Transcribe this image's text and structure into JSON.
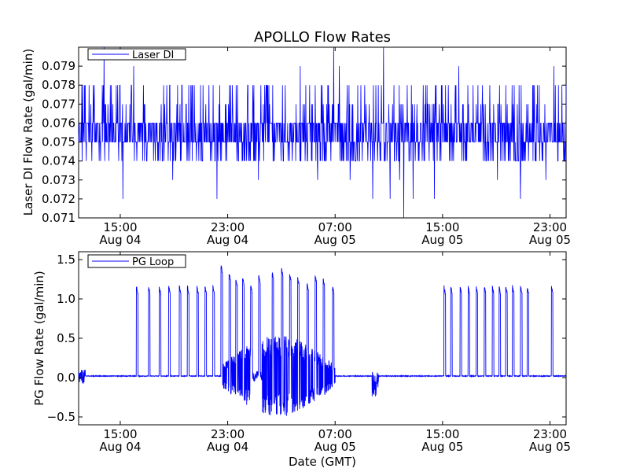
{
  "figure": {
    "title": "APOLLO Flow Rates",
    "line_color": "#0000ff"
  },
  "chart_data": [
    {
      "type": "line",
      "title": "APOLLO Flow Rates",
      "xlabel": "",
      "ylabel": "Laser DI Flow Rate (gal/min)",
      "legend": {
        "label": "Laser DI",
        "position": "top-left"
      },
      "x_hours_range": [
        -3.1,
        33.2
      ],
      "xticks": [
        {
          "h": 0,
          "time": "15:00",
          "date": "Aug 04"
        },
        {
          "h": 8,
          "time": "23:00",
          "date": "Aug 04"
        },
        {
          "h": 16,
          "time": "07:00",
          "date": "Aug 05"
        },
        {
          "h": 24,
          "time": "15:00",
          "date": "Aug 05"
        },
        {
          "h": 32,
          "time": "23:00",
          "date": "Aug 05"
        }
      ],
      "ylim": [
        0.071,
        0.08
      ],
      "yticks": [
        "0.071",
        "0.072",
        "0.073",
        "0.074",
        "0.075",
        "0.076",
        "0.077",
        "0.078",
        "0.079"
      ],
      "resolution": 0.001,
      "baseline_band": [
        0.075,
        0.076
      ],
      "fluctuation_range": [
        0.074,
        0.078
      ],
      "spikes": [
        {
          "x": -1.2,
          "y": 0.08
        },
        {
          "x": 0.2,
          "y": 0.072
        },
        {
          "x": 1.0,
          "y": 0.079
        },
        {
          "x": 3.9,
          "y": 0.073
        },
        {
          "x": 7.2,
          "y": 0.072
        },
        {
          "x": 10.3,
          "y": 0.073
        },
        {
          "x": 13.4,
          "y": 0.079
        },
        {
          "x": 14.7,
          "y": 0.073
        },
        {
          "x": 15.9,
          "y": 0.08
        },
        {
          "x": 16.3,
          "y": 0.079
        },
        {
          "x": 17.1,
          "y": 0.073
        },
        {
          "x": 18.8,
          "y": 0.072
        },
        {
          "x": 19.6,
          "y": 0.08
        },
        {
          "x": 20.1,
          "y": 0.072
        },
        {
          "x": 20.8,
          "y": 0.073
        },
        {
          "x": 21.1,
          "y": 0.071
        },
        {
          "x": 21.8,
          "y": 0.072
        },
        {
          "x": 23.4,
          "y": 0.072
        },
        {
          "x": 25.2,
          "y": 0.079
        },
        {
          "x": 28.1,
          "y": 0.073
        },
        {
          "x": 29.8,
          "y": 0.072
        },
        {
          "x": 31.7,
          "y": 0.073
        },
        {
          "x": 32.3,
          "y": 0.079
        }
      ]
    },
    {
      "type": "line",
      "xlabel": "Date (GMT)",
      "ylabel": "PG Flow Rate (gal/min)",
      "legend": {
        "label": "PG Loop",
        "position": "top-left"
      },
      "x_hours_range": [
        -3.1,
        33.2
      ],
      "xticks": [
        {
          "h": 0,
          "time": "15:00",
          "date": "Aug 04"
        },
        {
          "h": 8,
          "time": "23:00",
          "date": "Aug 04"
        },
        {
          "h": 16,
          "time": "07:00",
          "date": "Aug 05"
        },
        {
          "h": 24,
          "time": "15:00",
          "date": "Aug 05"
        },
        {
          "h": 32,
          "time": "23:00",
          "date": "Aug 05"
        }
      ],
      "ylim": [
        -0.6,
        1.6
      ],
      "yticks": [
        "−0.5",
        "0.0",
        "0.5",
        "1.0",
        "1.5"
      ],
      "ytick_values": [
        -0.5,
        0,
        0.5,
        1.0,
        1.5
      ],
      "baseline": 0.02,
      "pulse_peak": 1.18,
      "pulses_hours": [
        1.2,
        2.1,
        2.9,
        3.6,
        4.4,
        5.0,
        5.7,
        6.3,
        6.9,
        7.5,
        8.1,
        8.6,
        9.1,
        9.7,
        10.3,
        11.3,
        12.0,
        12.6,
        13.2,
        13.9,
        14.5,
        15.1,
        15.8,
        24.1,
        24.6,
        25.3,
        25.9,
        26.5,
        27.1,
        27.7,
        28.2,
        28.7,
        29.2,
        29.8,
        30.3,
        32.1
      ],
      "pulses_peaks": [
        1.18,
        1.18,
        1.18,
        1.18,
        1.18,
        1.18,
        1.18,
        1.18,
        1.18,
        1.44,
        1.35,
        1.28,
        1.3,
        1.2,
        1.32,
        1.36,
        1.41,
        1.35,
        1.3,
        1.22,
        1.32,
        1.28,
        1.18,
        1.18,
        1.18,
        1.18,
        1.18,
        1.18,
        1.18,
        1.18,
        1.18,
        1.18,
        1.18,
        1.18,
        1.18,
        1.18
      ],
      "oscillation_hours": [
        7.5,
        16.0
      ],
      "oscillation_range": [
        -0.5,
        0.5
      ],
      "early_noise_hours": [
        -3.1,
        -2.6
      ],
      "blip": {
        "x": 10.2,
        "range": [
          -0.05,
          0.08
        ]
      },
      "blip2": {
        "x": 19.0,
        "range": [
          -0.25,
          0.08
        ]
      }
    }
  ]
}
